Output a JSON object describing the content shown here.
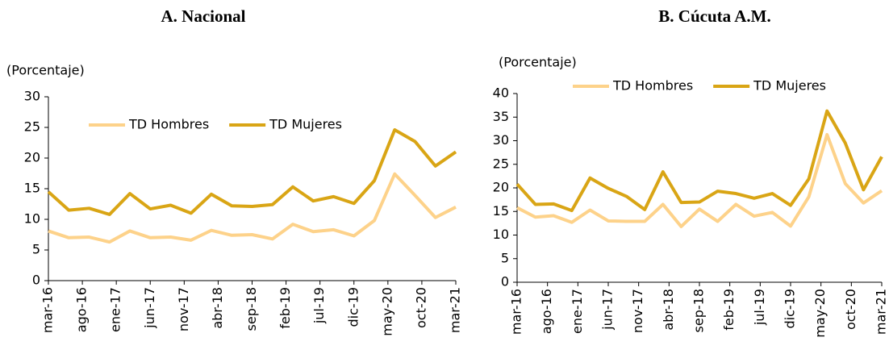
{
  "chart_data": [
    {
      "type": "line",
      "title": "A.   Nacional",
      "y_label": "(Porcentaje)",
      "x": [
        0,
        3,
        6,
        9,
        12,
        15,
        18,
        21,
        24,
        27,
        30,
        33,
        36,
        39,
        42,
        45,
        48,
        51,
        54,
        57,
        60
      ],
      "xlim": [
        0,
        60
      ],
      "xticks": [
        {
          "value": 0,
          "label": "mar-16"
        },
        {
          "value": 5,
          "label": "ago-16"
        },
        {
          "value": 10,
          "label": "ene-17"
        },
        {
          "value": 15,
          "label": "jun-17"
        },
        {
          "value": 20,
          "label": "nov-17"
        },
        {
          "value": 25,
          "label": "abr-18"
        },
        {
          "value": 30,
          "label": "sep-18"
        },
        {
          "value": 35,
          "label": "feb-19"
        },
        {
          "value": 40,
          "label": "jul-19"
        },
        {
          "value": 45,
          "label": "dic-19"
        },
        {
          "value": 50,
          "label": "may-20"
        },
        {
          "value": 55,
          "label": "oct-20"
        },
        {
          "value": 60,
          "label": "mar-21"
        }
      ],
      "ylim": [
        0,
        30
      ],
      "yticks": [
        0,
        5,
        10,
        15,
        20,
        25,
        30
      ],
      "series": [
        {
          "name": "TD Hombres",
          "color": "#fdd28a",
          "values": [
            8.1,
            7.0,
            7.1,
            6.3,
            8.1,
            7.0,
            7.1,
            6.6,
            8.2,
            7.4,
            7.5,
            6.8,
            9.2,
            8.0,
            8.3,
            7.3,
            9.8,
            17.4,
            13.9,
            10.3,
            12.0
          ]
        },
        {
          "name": "TD Mujeres",
          "color": "#d9a515",
          "values": [
            14.5,
            11.5,
            11.8,
            10.8,
            14.2,
            11.7,
            12.3,
            11.0,
            14.1,
            12.2,
            12.1,
            12.4,
            15.3,
            13.0,
            13.7,
            12.6,
            16.3,
            24.6,
            22.7,
            18.7,
            21.0
          ]
        }
      ]
    },
    {
      "type": "line",
      "title": "B. Cúcuta A.M.",
      "y_label": "(Porcentaje)",
      "x": [
        0,
        3,
        6,
        9,
        12,
        15,
        18,
        21,
        24,
        27,
        30,
        33,
        36,
        39,
        42,
        45,
        48,
        51,
        54,
        57,
        60
      ],
      "xlim": [
        0,
        60
      ],
      "xticks": [
        {
          "value": 0,
          "label": "mar-16"
        },
        {
          "value": 5,
          "label": "ago-16"
        },
        {
          "value": 10,
          "label": "ene-17"
        },
        {
          "value": 15,
          "label": "jun-17"
        },
        {
          "value": 20,
          "label": "nov-17"
        },
        {
          "value": 25,
          "label": "abr-18"
        },
        {
          "value": 30,
          "label": "sep-18"
        },
        {
          "value": 35,
          "label": "feb-19"
        },
        {
          "value": 40,
          "label": "jul-19"
        },
        {
          "value": 45,
          "label": "dic-19"
        },
        {
          "value": 50,
          "label": "may-20"
        },
        {
          "value": 55,
          "label": "oct-20"
        },
        {
          "value": 60,
          "label": "mar-21"
        }
      ],
      "ylim": [
        0,
        40
      ],
      "yticks": [
        0,
        5,
        10,
        15,
        20,
        25,
        30,
        35,
        40
      ],
      "series": [
        {
          "name": "TD Hombres",
          "color": "#fdd28a",
          "values": [
            15.8,
            13.8,
            14.1,
            12.7,
            15.3,
            13.0,
            12.9,
            12.9,
            16.5,
            11.8,
            15.5,
            12.9,
            16.5,
            14.0,
            14.8,
            11.9,
            18.1,
            31.3,
            20.9,
            16.8,
            19.4
          ]
        },
        {
          "name": "TD Mujeres",
          "color": "#d9a515",
          "values": [
            20.8,
            16.5,
            16.6,
            15.2,
            22.1,
            19.9,
            18.2,
            15.4,
            23.4,
            16.9,
            17.0,
            19.3,
            18.8,
            17.8,
            18.8,
            16.3,
            21.9,
            36.3,
            29.5,
            19.6,
            26.6
          ]
        }
      ]
    }
  ]
}
